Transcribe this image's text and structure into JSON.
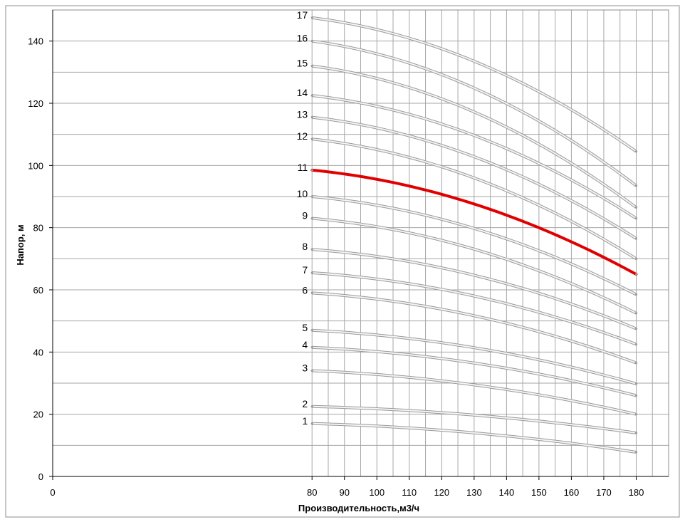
{
  "chart_data": {
    "type": "line",
    "title": "",
    "xlabel": "Производительность,м3/ч",
    "ylabel": "Напор, м",
    "xlim": [
      0,
      190
    ],
    "ylim": [
      0,
      150
    ],
    "x_ticks": [
      0,
      80,
      90,
      100,
      110,
      120,
      130,
      140,
      150,
      160,
      170,
      180
    ],
    "y_ticks": [
      0,
      20,
      40,
      60,
      80,
      100,
      120,
      140
    ],
    "grid": true,
    "highlight_color": "#e00000",
    "curve_color": "#c9c9c9",
    "x": [
      80,
      180
    ],
    "series": [
      {
        "label": "1",
        "values": [
          17.0,
          7.8
        ]
      },
      {
        "label": "2",
        "values": [
          22.5,
          14.0
        ]
      },
      {
        "label": "3",
        "values": [
          34.0,
          20.0
        ]
      },
      {
        "label": "4",
        "values": [
          41.5,
          26.0
        ]
      },
      {
        "label": "5",
        "values": [
          47.0,
          29.8
        ]
      },
      {
        "label": "6",
        "values": [
          59.0,
          36.5
        ]
      },
      {
        "label": "7",
        "values": [
          65.5,
          42.5
        ]
      },
      {
        "label": "8",
        "values": [
          73.0,
          47.5
        ]
      },
      {
        "label": "9",
        "values": [
          83.0,
          52.5
        ]
      },
      {
        "label": "10",
        "values": [
          90.0,
          58.5
        ]
      },
      {
        "label": "11",
        "values": [
          98.5,
          65.0
        ],
        "highlight": true
      },
      {
        "label": "12",
        "values": [
          108.5,
          70.0
        ]
      },
      {
        "label": "13",
        "values": [
          115.5,
          76.5
        ]
      },
      {
        "label": "14",
        "values": [
          122.5,
          83.0
        ]
      },
      {
        "label": "15",
        "values": [
          132.0,
          86.5
        ]
      },
      {
        "label": "16",
        "values": [
          140.0,
          93.5
        ]
      },
      {
        "label": "17",
        "values": [
          147.5,
          104.5
        ]
      }
    ]
  }
}
